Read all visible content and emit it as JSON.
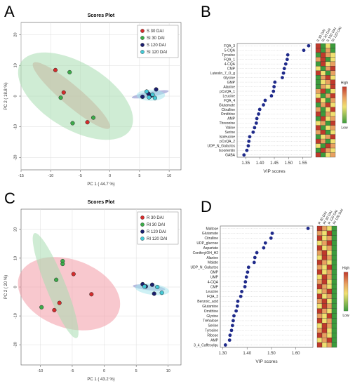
{
  "panel_labels": {
    "A": "A",
    "B": "B",
    "C": "C",
    "D": "D"
  },
  "chart_data": [
    {
      "panel": "A",
      "type": "scatter",
      "title": "Scores Plot",
      "xlabel": "PC 1 ( 44.7 %)",
      "ylabel": "PC 2 ( 18.8 %)",
      "xlim": [
        -15,
        12
      ],
      "ylim": [
        -24,
        24
      ],
      "xticks": [
        -15,
        -10,
        -5,
        0,
        5,
        10
      ],
      "yticks": [
        -20,
        -10,
        0,
        10,
        20
      ],
      "legend_position": "top-right",
      "series": [
        {
          "name": "S 30 DAI",
          "color": "#d42c2c",
          "ellipse": "#e88f8f",
          "points": [
            [
              -9.2,
              8.5
            ],
            [
              -7.8,
              1.2
            ],
            [
              -3.8,
              -8.5
            ]
          ],
          "ellipse_def": {
            "cx": -6.5,
            "cy": 0.2,
            "a": 12.5,
            "b": 2.2,
            "angle": -60
          }
        },
        {
          "name": "SI 30 DAI",
          "color": "#3cab4a",
          "ellipse": "#a8ddb0",
          "points": [
            [
              -6.8,
              7.8
            ],
            [
              -8.3,
              -0.5
            ],
            [
              -6.3,
              -8.8
            ],
            [
              -2.8,
              -7.0
            ]
          ],
          "ellipse_def": {
            "cx": -5.8,
            "cy": 0.0,
            "a": 15.5,
            "b": 7.5,
            "angle": -63
          }
        },
        {
          "name": "S 120 DAI",
          "color": "#1b1f6e",
          "ellipse": "#8085c8",
          "points": [
            [
              5.5,
              -0.2
            ],
            [
              6.5,
              0.8
            ],
            [
              7.8,
              2.2
            ],
            [
              7.0,
              0.2
            ]
          ],
          "ellipse_def": {
            "cx": 6.8,
            "cy": 0.6,
            "a": 3.3,
            "b": 0.8,
            "angle": 20
          }
        },
        {
          "name": "SI 120 DAI",
          "color": "#44c9d6",
          "ellipse": "#a5e6ed",
          "points": [
            [
              6.2,
              1.5
            ],
            [
              7.2,
              0.5
            ],
            [
              6.6,
              -0.4
            ],
            [
              7.6,
              -0.6
            ]
          ],
          "ellipse_def": {
            "cx": 6.9,
            "cy": 0.3,
            "a": 2.4,
            "b": 1.8,
            "angle": 0
          }
        }
      ]
    },
    {
      "panel": "B",
      "type": "scatter",
      "xlabel": "VIP scores",
      "xlim": [
        1.32,
        1.58
      ],
      "xticks": [
        1.35,
        1.4,
        1.45,
        1.5,
        1.55
      ],
      "legend_title": "",
      "heat_high": "High",
      "heat_low": "Low",
      "heat_columns": [
        "S 30 DAI",
        "SI 30 DAI",
        "S 120 DAI",
        "SI 120 DAI"
      ],
      "features": [
        "FQA_3",
        "5-CQA",
        "Tyrosine",
        "FQA_1",
        "4-CQA",
        "CMP",
        "Luteolin_7_O_g",
        "Glycine",
        "GMP",
        "Alanine",
        "pCoQA_1",
        "Leucine",
        "FQA_4",
        "Glutamate",
        "Citrulline",
        "Ornithine",
        "AMP",
        "Threonine",
        "Valine",
        "Serine",
        "Isoleucine",
        "pCoQA_2",
        "UDP_N_Galactos",
        "Isoorientin",
        "GABA"
      ],
      "values": [
        1.57,
        1.553,
        1.497,
        1.495,
        1.49,
        1.485,
        1.482,
        1.478,
        1.452,
        1.449,
        1.447,
        1.44,
        1.418,
        1.412,
        1.399,
        1.395,
        1.389,
        1.387,
        1.381,
        1.376,
        1.364,
        1.361,
        1.359,
        1.354,
        1.344
      ],
      "heatmap": [
        [
          "#c0392b",
          "#3c9b3c",
          "#f0e070",
          "#3c9b3c"
        ],
        [
          "#c0392b",
          "#3c9b3c",
          "#e8a060",
          "#3c9b3c"
        ],
        [
          "#3c9b3c",
          "#c0392b",
          "#e8a060",
          "#f0e070"
        ],
        [
          "#e8a060",
          "#c0392b",
          "#3c9b3c",
          "#f0e070"
        ],
        [
          "#3c9b3c",
          "#c0392b",
          "#f0e070",
          "#e8a060"
        ],
        [
          "#f0e070",
          "#3c9b3c",
          "#e8a060",
          "#c0392b"
        ],
        [
          "#c0392b",
          "#f0e070",
          "#3c9b3c",
          "#e8a060"
        ],
        [
          "#3c9b3c",
          "#e8a060",
          "#c0392b",
          "#f0e070"
        ],
        [
          "#3c9b3c",
          "#f0e070",
          "#e8a060",
          "#c0392b"
        ],
        [
          "#3c9b3c",
          "#e8a060",
          "#f0e070",
          "#c0392b"
        ],
        [
          "#e8a060",
          "#c0392b",
          "#3c9b3c",
          "#f0e070"
        ],
        [
          "#f0e070",
          "#3c9b3c",
          "#e8a060",
          "#c0392b"
        ],
        [
          "#c0392b",
          "#f0e070",
          "#3c9b3c",
          "#e8a060"
        ],
        [
          "#3c9b3c",
          "#e8a060",
          "#c0392b",
          "#f0e070"
        ],
        [
          "#e8a060",
          "#3c9b3c",
          "#f0e070",
          "#c0392b"
        ],
        [
          "#c0392b",
          "#3c9b3c",
          "#e8a060",
          "#f0e070"
        ],
        [
          "#3c9b3c",
          "#c0392b",
          "#f0e070",
          "#e8a060"
        ],
        [
          "#f0e070",
          "#e8a060",
          "#3c9b3c",
          "#c0392b"
        ],
        [
          "#c0392b",
          "#3c9b3c",
          "#f0e070",
          "#e8a060"
        ],
        [
          "#e8a060",
          "#c0392b",
          "#3c9b3c",
          "#f0e070"
        ],
        [
          "#3c9b3c",
          "#f0e070",
          "#e8a060",
          "#c0392b"
        ],
        [
          "#c0392b",
          "#e8a060",
          "#3c9b3c",
          "#f0e070"
        ],
        [
          "#f0e070",
          "#3c9b3c",
          "#c0392b",
          "#e8a060"
        ],
        [
          "#3c9b3c",
          "#c0392b",
          "#e8a060",
          "#f0e070"
        ],
        [
          "#c0392b",
          "#3c9b3c",
          "#f0e070",
          "#e8a060"
        ]
      ]
    },
    {
      "panel": "C",
      "type": "scatter",
      "title": "Scores Plot",
      "xlabel": "PC 1 ( 43.2 %)",
      "ylabel": "PC 2 ( 20 %)",
      "xlim": [
        -13,
        12
      ],
      "ylim": [
        -27,
        27
      ],
      "xticks": [
        -10,
        -5,
        0,
        5,
        10
      ],
      "yticks": [
        -20,
        -10,
        0,
        10,
        20
      ],
      "legend_position": "top-right",
      "series": [
        {
          "name": "R 30 DAI",
          "color": "#d42c2c",
          "ellipse": "#f29aa5",
          "points": [
            [
              -4.8,
              4.5
            ],
            [
              -7.0,
              -5.5
            ],
            [
              -7.8,
              -8.0
            ],
            [
              -2.0,
              -2.5
            ]
          ],
          "ellipse_def": {
            "cx": -5.5,
            "cy": -2.3,
            "a": 13.0,
            "b": 7.5,
            "angle": -75
          }
        },
        {
          "name": "RI 30 DAI",
          "color": "#3cab4a",
          "ellipse": "#a8ddb0",
          "points": [
            [
              -6.5,
              9.0
            ],
            [
              -6.5,
              8.0
            ],
            [
              -7.5,
              2.5
            ],
            [
              -9.8,
              -7.0
            ]
          ],
          "ellipse_def": {
            "cx": -7.6,
            "cy": 0.5,
            "a": 18.5,
            "b": 1.6,
            "angle": -80
          }
        },
        {
          "name": "R 120 DAI",
          "color": "#1b1f6e",
          "ellipse": "#8085c8",
          "points": [
            [
              6.0,
              1.0
            ],
            [
              7.5,
              0.8
            ],
            [
              6.5,
              0.2
            ],
            [
              7.8,
              -2.3
            ]
          ],
          "ellipse_def": {
            "cx": 7.0,
            "cy": -0.2,
            "a": 2.6,
            "b": 0.9,
            "angle": -15
          }
        },
        {
          "name": "RI 120 DAI",
          "color": "#44c9d6",
          "ellipse": "#a5e6ed",
          "points": [
            [
              6.3,
              0.2
            ],
            [
              8.3,
              0.0
            ],
            [
              9.0,
              -2.0
            ]
          ],
          "ellipse_def": {
            "cx": 7.5,
            "cy": -0.8,
            "a": 2.8,
            "b": 1.8,
            "angle": -25
          }
        }
      ]
    },
    {
      "panel": "D",
      "type": "scatter",
      "xlabel": "VIP scores",
      "xlim": [
        1.29,
        1.67
      ],
      "xticks": [
        1.3,
        1.4,
        1.5,
        1.6
      ],
      "heat_high": "High",
      "heat_low": "Low",
      "heat_columns": [
        "R 30 DAI",
        "RI 30 DAI",
        "R 120 DAI",
        "RI 120 DAI"
      ],
      "features": [
        "Maltose",
        "Glutamate",
        "Citrulline",
        "UDP_glucose",
        "Aspartate",
        "ConiferylOH_H2",
        "Alanine",
        "Malate",
        "UDP_N_Galactos",
        "GMP",
        "UMP",
        "4-CQA",
        "CMP",
        "Leucine",
        "FQA_3",
        "Benzoic_acid",
        "Glutamine",
        "Ornithine",
        "Glycine",
        "Trehalose",
        "Serine",
        "Tyrosine",
        "Ribose",
        "AMP",
        "3_4_Caffeoylqu"
      ],
      "values": [
        1.65,
        1.503,
        1.498,
        1.475,
        1.468,
        1.44,
        1.432,
        1.429,
        1.406,
        1.402,
        1.397,
        1.393,
        1.391,
        1.378,
        1.374,
        1.362,
        1.36,
        1.355,
        1.346,
        1.343,
        1.34,
        1.336,
        1.33,
        1.328,
        1.311
      ],
      "heatmap": [
        [
          "#c0392b",
          "#e8a060",
          "#f0e070",
          "#3c9b3c"
        ],
        [
          "#e8a060",
          "#f0e070",
          "#c0392b",
          "#3c9b3c"
        ],
        [
          "#c0392b",
          "#f0e070",
          "#e8a060",
          "#3c9b3c"
        ],
        [
          "#f0e070",
          "#e8a060",
          "#c0392b",
          "#3c9b3c"
        ],
        [
          "#c0392b",
          "#f0e070",
          "#e8a060",
          "#3c9b3c"
        ],
        [
          "#e8a060",
          "#c0392b",
          "#f0e070",
          "#3c9b3c"
        ],
        [
          "#f0e070",
          "#c0392b",
          "#e8a060",
          "#3c9b3c"
        ],
        [
          "#c0392b",
          "#e8a060",
          "#f0e070",
          "#3c9b3c"
        ],
        [
          "#e8a060",
          "#f0e070",
          "#c0392b",
          "#3c9b3c"
        ],
        [
          "#c0392b",
          "#f0e070",
          "#e8a060",
          "#3c9b3c"
        ],
        [
          "#f0e070",
          "#c0392b",
          "#e8a060",
          "#3c9b3c"
        ],
        [
          "#e8a060",
          "#c0392b",
          "#f0e070",
          "#3c9b3c"
        ],
        [
          "#c0392b",
          "#e8a060",
          "#f0e070",
          "#3c9b3c"
        ],
        [
          "#f0e070",
          "#e8a060",
          "#c0392b",
          "#3c9b3c"
        ],
        [
          "#c0392b",
          "#f0e070",
          "#e8a060",
          "#3c9b3c"
        ],
        [
          "#e8a060",
          "#c0392b",
          "#f0e070",
          "#3c9b3c"
        ],
        [
          "#f0e070",
          "#c0392b",
          "#e8a060",
          "#3c9b3c"
        ],
        [
          "#c0392b",
          "#e8a060",
          "#f0e070",
          "#3c9b3c"
        ],
        [
          "#e8a060",
          "#f0e070",
          "#c0392b",
          "#3c9b3c"
        ],
        [
          "#c0392b",
          "#f0e070",
          "#e8a060",
          "#3c9b3c"
        ],
        [
          "#f0e070",
          "#c0392b",
          "#e8a060",
          "#3c9b3c"
        ],
        [
          "#e8a060",
          "#c0392b",
          "#f0e070",
          "#3c9b3c"
        ],
        [
          "#c0392b",
          "#e8a060",
          "#f0e070",
          "#3c9b3c"
        ],
        [
          "#f0e070",
          "#e8a060",
          "#c0392b",
          "#3c9b3c"
        ],
        [
          "#c0392b",
          "#f0e070",
          "#e8a060",
          "#3c9b3c"
        ]
      ]
    }
  ]
}
